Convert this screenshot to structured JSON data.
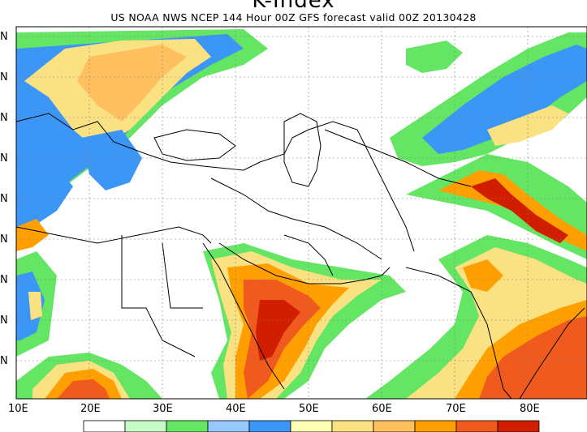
{
  "title": "K-Index",
  "subtitle": "US NOAA NWS NCEP 144 Hour 00Z GFS forecast valid 00Z 20130428",
  "lon_labels": [
    "10E",
    "20E",
    "30E",
    "40E",
    "50E",
    "60E",
    "70E",
    "80E"
  ],
  "lat_labels": [
    "N",
    "N",
    "N",
    "N",
    "N",
    "N",
    "N",
    "N",
    "N"
  ],
  "colorbar_colors": [
    "#ffffff",
    "#c8fac8",
    "#64e664",
    "#96c8fa",
    "#3c96f5",
    "#ffffb4",
    "#fae182",
    "#ffc060",
    "#ffa000",
    "#f05a1e",
    "#d21e00"
  ],
  "contour_colors": {
    "green": "#64e664",
    "lightgreen": "#c8fac8",
    "lightblue": "#96c8fa",
    "blue": "#3c96f5",
    "yellow": "#fae182",
    "orange": "#ffa000",
    "darkorange": "#f05a1e",
    "red": "#d21e00"
  }
}
